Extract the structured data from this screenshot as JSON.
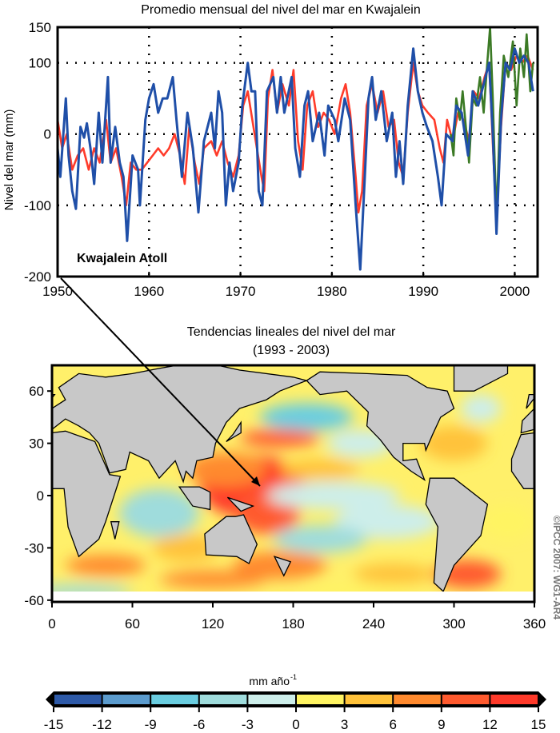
{
  "chart_data": [
    {
      "type": "line",
      "title": "Promedio mensual del nivel del mar en Kwajalein",
      "xlabel": "",
      "ylabel": "Nivel del mar (mm)",
      "annotation": "Kwajalein Atoll",
      "xlim": [
        1950,
        2002.5
      ],
      "ylim": [
        -200,
        150
      ],
      "xticks": [
        1950,
        1960,
        1970,
        1980,
        1990,
        2000
      ],
      "yticks": [
        150,
        100,
        0,
        -100,
        -200
      ],
      "grid": "dotted",
      "colors": {
        "blue": "#1f4fa8",
        "red": "#ff3b2a",
        "green": "#3b7a25"
      },
      "series": [
        {
          "name": "red",
          "color": "#ff3b2a",
          "points": [
            [
              1950,
              20
            ],
            [
              1950.5,
              -20
            ],
            [
              1951,
              0
            ],
            [
              1951.6,
              -50
            ],
            [
              1952.2,
              -30
            ],
            [
              1952.8,
              -20
            ],
            [
              1953.4,
              -50
            ],
            [
              1954,
              -20
            ],
            [
              1954.6,
              -40
            ],
            [
              1955.3,
              20
            ],
            [
              1955.8,
              -40
            ],
            [
              1956.4,
              -20
            ],
            [
              1957,
              -60
            ],
            [
              1957.5,
              -100
            ],
            [
              1958,
              -40
            ],
            [
              1958.6,
              -50
            ],
            [
              1959.2,
              -50
            ],
            [
              1959.8,
              -40
            ],
            [
              1960.4,
              -30
            ],
            [
              1961,
              -20
            ],
            [
              1961.6,
              -30
            ],
            [
              1962.2,
              -20
            ],
            [
              1962.8,
              0
            ],
            [
              1963.4,
              -30
            ],
            [
              1963.9,
              -70
            ],
            [
              1964.4,
              10
            ],
            [
              1965,
              -40
            ],
            [
              1965.5,
              -70
            ],
            [
              1966,
              -20
            ],
            [
              1966.8,
              -10
            ],
            [
              1967.4,
              -30
            ],
            [
              1968,
              -10
            ],
            [
              1968.6,
              -40
            ],
            [
              1969.2,
              -60
            ],
            [
              1969.8,
              -30
            ],
            [
              1970.3,
              40
            ],
            [
              1970.8,
              60
            ],
            [
              1971.3,
              20
            ],
            [
              1971.8,
              -20
            ],
            [
              1972.3,
              -60
            ],
            [
              1972.6,
              -80
            ],
            [
              1973,
              50
            ],
            [
              1973.5,
              90
            ],
            [
              1974,
              30
            ],
            [
              1974.6,
              70
            ],
            [
              1975.3,
              40
            ],
            [
              1975.8,
              90
            ],
            [
              1976.3,
              -10
            ],
            [
              1976.8,
              -50
            ],
            [
              1977.3,
              40
            ],
            [
              1977.9,
              60
            ],
            [
              1978.5,
              10
            ],
            [
              1979.1,
              30
            ],
            [
              1979.7,
              20
            ],
            [
              1980.3,
              0
            ],
            [
              1981,
              50
            ],
            [
              1981.5,
              70
            ],
            [
              1982,
              30
            ],
            [
              1982.6,
              -60
            ],
            [
              1982.9,
              -110
            ],
            [
              1983.3,
              -80
            ],
            [
              1983.8,
              40
            ],
            [
              1984.4,
              70
            ],
            [
              1985,
              30
            ],
            [
              1985.6,
              60
            ],
            [
              1986.2,
              10
            ],
            [
              1986.8,
              20
            ],
            [
              1987.3,
              -40
            ],
            [
              1987.8,
              -60
            ],
            [
              1988.3,
              30
            ],
            [
              1988.9,
              100
            ],
            [
              1989.4,
              60
            ],
            [
              1989.9,
              40
            ],
            [
              1990.5,
              30
            ],
            [
              1991.2,
              20
            ],
            [
              1991.8,
              -20
            ],
            [
              1992.2,
              -40
            ],
            [
              1992.6,
              20
            ],
            [
              1993.2,
              -10
            ],
            [
              1993.8,
              30
            ],
            [
              1994.4,
              20
            ],
            [
              1995,
              -10
            ],
            [
              1995.5,
              60
            ],
            [
              1996.1,
              50
            ],
            [
              1996.7,
              80
            ],
            [
              1997.2,
              100
            ],
            [
              1997.7,
              -40
            ],
            [
              1998,
              -120
            ],
            [
              1998.5,
              10
            ],
            [
              1999,
              100
            ],
            [
              1999.6,
              90
            ],
            [
              2000.2,
              110
            ],
            [
              2000.8,
              100
            ],
            [
              2001.4,
              110
            ],
            [
              2002,
              90
            ]
          ]
        },
        {
          "name": "green",
          "color": "#3b7a25",
          "points": [
            [
              1993,
              0
            ],
            [
              1993.3,
              -30
            ],
            [
              1993.6,
              50
            ],
            [
              1994,
              20
            ],
            [
              1994.3,
              60
            ],
            [
              1994.8,
              -10
            ],
            [
              1995,
              -40
            ],
            [
              1995.4,
              50
            ],
            [
              1995.8,
              40
            ],
            [
              1996.2,
              80
            ],
            [
              1996.6,
              30
            ],
            [
              1997,
              100
            ],
            [
              1997.3,
              150
            ],
            [
              1997.6,
              50
            ],
            [
              1998,
              -120
            ],
            [
              1998.4,
              30
            ],
            [
              1998.8,
              110
            ],
            [
              1999.3,
              80
            ],
            [
              1999.8,
              130
            ],
            [
              2000.2,
              40
            ],
            [
              2000.6,
              120
            ],
            [
              2001,
              80
            ],
            [
              2001.3,
              140
            ],
            [
              2001.7,
              60
            ],
            [
              2002,
              100
            ]
          ]
        },
        {
          "name": "blue",
          "color": "#1f4fa8",
          "points": [
            [
              1950,
              -20
            ],
            [
              1950.3,
              -60
            ],
            [
              1950.9,
              50
            ],
            [
              1951.2,
              -30
            ],
            [
              1951.6,
              -80
            ],
            [
              1952,
              -105
            ],
            [
              1952.5,
              10
            ],
            [
              1952.9,
              -5
            ],
            [
              1953.2,
              15
            ],
            [
              1953.6,
              -20
            ],
            [
              1954,
              -70
            ],
            [
              1954.5,
              30
            ],
            [
              1954.9,
              -40
            ],
            [
              1955.5,
              80
            ],
            [
              1955.8,
              -40
            ],
            [
              1956.3,
              10
            ],
            [
              1956.8,
              -40
            ],
            [
              1957.2,
              -60
            ],
            [
              1957.6,
              -150
            ],
            [
              1958.2,
              -30
            ],
            [
              1958.8,
              -50
            ],
            [
              1959,
              -100
            ],
            [
              1959.6,
              20
            ],
            [
              1960,
              50
            ],
            [
              1960.5,
              70
            ],
            [
              1961,
              30
            ],
            [
              1961.5,
              50
            ],
            [
              1962,
              50
            ],
            [
              1962.6,
              80
            ],
            [
              1963,
              20
            ],
            [
              1963.6,
              -60
            ],
            [
              1964.2,
              30
            ],
            [
              1964.8,
              -20
            ],
            [
              1965.4,
              -110
            ],
            [
              1966,
              -10
            ],
            [
              1966.8,
              30
            ],
            [
              1967.2,
              -20
            ],
            [
              1967.6,
              60
            ],
            [
              1968,
              30
            ],
            [
              1968.4,
              -100
            ],
            [
              1968.8,
              -40
            ],
            [
              1969.2,
              -80
            ],
            [
              1969.8,
              -40
            ],
            [
              1970.2,
              40
            ],
            [
              1970.8,
              100
            ],
            [
              1971.2,
              60
            ],
            [
              1971.6,
              60
            ],
            [
              1972,
              -80
            ],
            [
              1972.4,
              -100
            ],
            [
              1972.9,
              60
            ],
            [
              1973.6,
              80
            ],
            [
              1974,
              30
            ],
            [
              1974.4,
              80
            ],
            [
              1974.8,
              30
            ],
            [
              1975.6,
              80
            ],
            [
              1976,
              -20
            ],
            [
              1976.5,
              -60
            ],
            [
              1977,
              40
            ],
            [
              1977.4,
              60
            ],
            [
              1977.9,
              -10
            ],
            [
              1978.6,
              30
            ],
            [
              1979.2,
              -30
            ],
            [
              1979.6,
              40
            ],
            [
              1980.3,
              20
            ],
            [
              1980.7,
              -10
            ],
            [
              1981.4,
              50
            ],
            [
              1982,
              20
            ],
            [
              1982.6,
              -100
            ],
            [
              1983.1,
              -190
            ],
            [
              1983.6,
              -60
            ],
            [
              1984,
              50
            ],
            [
              1984.4,
              80
            ],
            [
              1984.8,
              20
            ],
            [
              1985.4,
              60
            ],
            [
              1986,
              -10
            ],
            [
              1986.6,
              30
            ],
            [
              1987,
              -60
            ],
            [
              1987.4,
              -10
            ],
            [
              1987.8,
              -70
            ],
            [
              1988.3,
              40
            ],
            [
              1988.9,
              120
            ],
            [
              1989.4,
              60
            ],
            [
              1989.9,
              30
            ],
            [
              1990.4,
              10
            ],
            [
              1991,
              -10
            ],
            [
              1991.6,
              -60
            ],
            [
              1992,
              -100
            ],
            [
              1992.5,
              0
            ],
            [
              1993.2,
              -10
            ],
            [
              1993.6,
              40
            ],
            [
              1994.2,
              30
            ],
            [
              1994.9,
              -30
            ],
            [
              1995.4,
              60
            ],
            [
              1996,
              40
            ],
            [
              1996.6,
              70
            ],
            [
              1997,
              90
            ],
            [
              1997.2,
              100
            ],
            [
              1997.6,
              0
            ],
            [
              1998,
              -140
            ],
            [
              1998.5,
              20
            ],
            [
              1999,
              100
            ],
            [
              1999.5,
              90
            ],
            [
              2000,
              120
            ],
            [
              2000.5,
              100
            ],
            [
              2001,
              110
            ],
            [
              2001.5,
              100
            ],
            [
              2002,
              60
            ]
          ]
        }
      ]
    },
    {
      "type": "heatmap",
      "title": "Tendencias lineales del nivel del mar",
      "subtitle": "(1993 - 2003)",
      "xlabel": "",
      "ylabel": "",
      "xlim": [
        0,
        360
      ],
      "ylim": [
        -65,
        75
      ],
      "xticks": [
        0,
        60,
        120,
        180,
        240,
        300,
        360
      ],
      "yticks": [
        60,
        30,
        0,
        -30,
        -60
      ],
      "colorbar": {
        "label": "mm año",
        "label_sup": "-1",
        "ticks": [
          -15,
          -12,
          -9,
          -6,
          -3,
          0,
          3,
          6,
          9,
          12,
          15
        ],
        "colors": [
          "#2e5aa8",
          "#5b9bcd",
          "#6acde0",
          "#9fdcdc",
          "#cdeeea",
          "#fff462",
          "#ffc23a",
          "#ff8a2e",
          "#ff5a2e",
          "#ff3a2a"
        ],
        "extend": "both"
      }
    }
  ],
  "credit": "©IPCC 2007: WG1-AR4"
}
